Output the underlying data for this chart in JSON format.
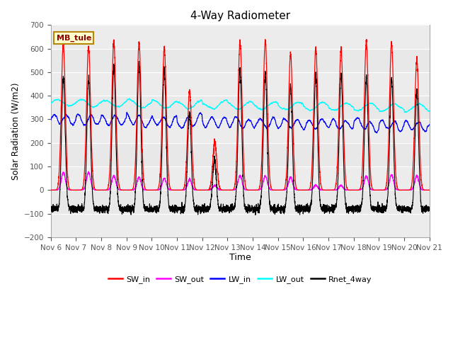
{
  "title": "4-Way Radiometer",
  "ylabel": "Solar Radiation (W/m2)",
  "xlabel": "Time",
  "ylim": [
    -200,
    700
  ],
  "yticks": [
    -200,
    -100,
    0,
    100,
    200,
    300,
    400,
    500,
    600,
    700
  ],
  "x_labels": [
    "Nov 6",
    "Nov 7",
    "Nov 8",
    "Nov 9",
    "Nov 10",
    "Nov 11",
    "Nov 12",
    "Nov 13",
    "Nov 14",
    "Nov 15",
    "Nov 16",
    "Nov 17",
    "Nov 18",
    "Nov 19",
    "Nov 20",
    "Nov 21"
  ],
  "station_label": "MB_tule",
  "colors": {
    "SW_in": "#ff0000",
    "SW_out": "#ff00ff",
    "LW_in": "#0000ff",
    "LW_out": "#00ffff",
    "Rnet_4way": "#000000"
  },
  "n_days": 15,
  "points_per_day": 288,
  "band_color": "#d8d8d8",
  "bg_color": "#f0f0f0"
}
